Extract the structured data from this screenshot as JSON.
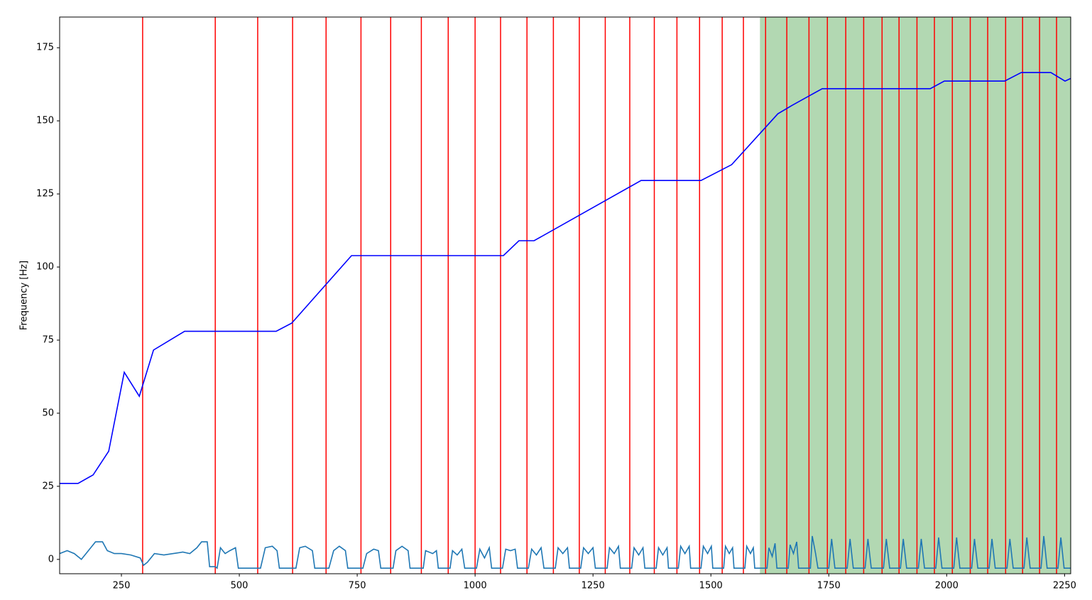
{
  "chart_data": {
    "type": "line",
    "y_label": "Frequency [Hz]",
    "xlim": [
      119,
      2263
    ],
    "ylim": [
      -4.9,
      185.5
    ],
    "xticks": [
      250,
      500,
      750,
      1000,
      1250,
      1500,
      1750,
      2000,
      2250
    ],
    "yticks": [
      0,
      25,
      50,
      75,
      100,
      125,
      150,
      175
    ],
    "grid": false,
    "span": {
      "color": "#b2d8b2",
      "x": [
        1604,
        2263
      ]
    },
    "vlines": {
      "color": "#ff0000",
      "values": [
        295,
        449,
        539,
        613,
        684,
        758,
        821,
        886,
        943,
        1000,
        1054,
        1110,
        1166,
        1221,
        1276,
        1328,
        1380,
        1428,
        1476,
        1524,
        1569,
        1616,
        1661,
        1708,
        1747,
        1786,
        1824,
        1863,
        1899,
        1937,
        1974,
        2012,
        2050,
        2087,
        2125,
        2161,
        2197,
        2233
      ]
    },
    "series": [
      {
        "color": "#0000ff",
        "x": [
          119,
          158,
          190,
          223,
          256,
          288,
          318,
          384,
          578,
          611,
          738,
          1060,
          1093,
          1125,
          1352,
          1479,
          1544,
          1642,
          1672,
          1736,
          1965,
          1995,
          2123,
          2158,
          2221,
          2251,
          2263
        ],
        "values": [
          26,
          26,
          28.9,
          37,
          64,
          55.8,
          71.6,
          78,
          78,
          80.8,
          103.9,
          103.9,
          109,
          109,
          129.6,
          129.6,
          135,
          152.4,
          155.3,
          161,
          161,
          163.6,
          163.6,
          166.5,
          166.5,
          163.6,
          164.5
        ]
      },
      {
        "color": "#1f77b4",
        "x": [
          119,
          135,
          150,
          165,
          180,
          195,
          210,
          220,
          235,
          250,
          270,
          290,
          297,
          305,
          320,
          340,
          360,
          380,
          395,
          410,
          420,
          432,
          437,
          449,
          453,
          460,
          470,
          480,
          492,
          498,
          545,
          555,
          570,
          580,
          585,
          620,
          628,
          640,
          655,
          660,
          690,
          700,
          712,
          725,
          730,
          762,
          770,
          785,
          795,
          800,
          826,
          832,
          845,
          858,
          862,
          890,
          895,
          910,
          918,
          922,
          947,
          952,
          962,
          972,
          978,
          1003,
          1010,
          1020,
          1030,
          1035,
          1058,
          1065,
          1075,
          1085,
          1090,
          1113,
          1120,
          1130,
          1140,
          1146,
          1170,
          1176,
          1186,
          1196,
          1200,
          1224,
          1230,
          1240,
          1250,
          1255,
          1280,
          1285,
          1295,
          1304,
          1308,
          1332,
          1337,
          1347,
          1356,
          1360,
          1384,
          1389,
          1398,
          1407,
          1410,
          1431,
          1436,
          1445,
          1454,
          1457,
          1479,
          1484,
          1493,
          1501,
          1504,
          1527,
          1531,
          1539,
          1546,
          1549,
          1572,
          1576,
          1584,
          1590,
          1593,
          1619,
          1623,
          1630,
          1636,
          1640,
          1664,
          1668,
          1675,
          1682,
          1686,
          1711,
          1715,
          1722,
          1727,
          1750,
          1756,
          1763,
          1789,
          1795,
          1802,
          1827,
          1833,
          1840,
          1866,
          1872,
          1879,
          1902,
          1908,
          1915,
          1940,
          1946,
          1953,
          1977,
          1983,
          1990,
          2015,
          2021,
          2028,
          2053,
          2059,
          2066,
          2090,
          2096,
          2103,
          2128,
          2134,
          2141,
          2164,
          2170,
          2177,
          2200,
          2206,
          2213,
          2236,
          2242,
          2249,
          2263
        ],
        "values": [
          2,
          3,
          2,
          0,
          3,
          6,
          6,
          3,
          2,
          2,
          1.5,
          0.5,
          -2,
          -1,
          2,
          1.5,
          2,
          2.5,
          2,
          4,
          6,
          6,
          -2.5,
          -2.5,
          -3,
          4,
          2,
          3,
          4,
          -3,
          -3,
          4,
          4.5,
          3,
          -3,
          -3,
          4,
          4.5,
          3,
          -3,
          -3,
          3,
          4.5,
          3,
          -3,
          -3,
          2,
          3.5,
          3,
          -3,
          -3,
          3,
          4.5,
          3,
          -3,
          -3,
          3,
          2,
          3,
          -3,
          -3,
          3,
          1.5,
          3.5,
          -3,
          -3,
          3.5,
          0.5,
          4,
          -3,
          -3,
          3.5,
          3,
          3.5,
          -3,
          -3,
          3.5,
          1.5,
          4,
          -3,
          -3,
          4,
          2,
          4,
          -3,
          -3,
          4,
          2,
          4,
          -3,
          -3,
          4,
          2,
          4.5,
          -3,
          -3,
          4,
          1.5,
          4,
          -3,
          -3,
          4,
          1.5,
          4,
          -3,
          -3,
          4.5,
          2,
          4.5,
          -3,
          -3,
          4.5,
          2,
          4.5,
          -3,
          -3,
          4.5,
          2,
          4,
          -3,
          -3,
          4.5,
          2,
          4,
          -3,
          -3,
          4,
          1,
          5.5,
          -3,
          -3,
          5,
          2,
          6,
          -3,
          -3,
          8,
          2,
          -3,
          -3,
          7,
          -3,
          -3,
          7,
          -3,
          -3,
          7,
          -3,
          -3,
          7,
          -3,
          -3,
          7,
          -3,
          -3,
          7,
          -3,
          -3,
          7.5,
          -3,
          -3,
          7.5,
          -3,
          -3,
          7,
          -3,
          -3,
          7,
          -3,
          -3,
          7,
          -3,
          -3,
          7.5,
          -3,
          -3,
          8,
          -3,
          -3,
          7.5,
          -3,
          -3
        ]
      }
    ]
  }
}
